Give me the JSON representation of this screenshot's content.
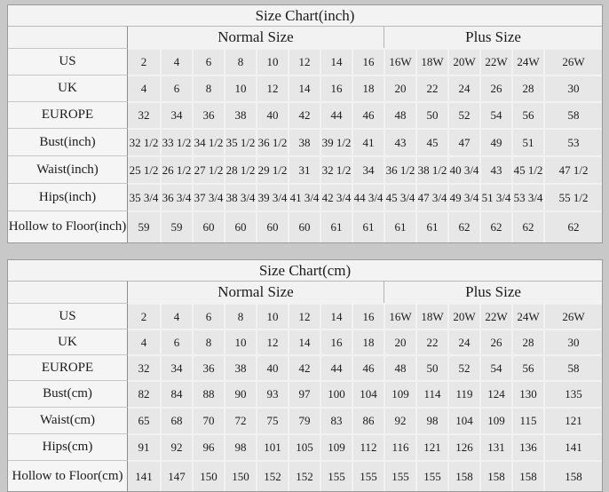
{
  "colors": {
    "page_background": "#c8c8c8",
    "header_background": "#f3f3f3",
    "label_background": "#f5f5f5",
    "cell_background": "#e7e7e7",
    "divider_dark": "#8d8d8d",
    "text": "#1b1b1b"
  },
  "chart_data": [
    {
      "type": "table",
      "title": "Size Chart(inch)",
      "column_groups": [
        {
          "label": "Normal Size",
          "span": 8
        },
        {
          "label": "Plus Size",
          "span": 6
        }
      ],
      "rows": [
        {
          "label": "US",
          "values": [
            "2",
            "4",
            "6",
            "8",
            "10",
            "12",
            "14",
            "16",
            "16W",
            "18W",
            "20W",
            "22W",
            "24W",
            "26W"
          ]
        },
        {
          "label": "UK",
          "values": [
            "4",
            "6",
            "8",
            "10",
            "12",
            "14",
            "16",
            "18",
            "20",
            "22",
            "24",
            "26",
            "28",
            "30"
          ]
        },
        {
          "label": "EUROPE",
          "values": [
            "32",
            "34",
            "36",
            "38",
            "40",
            "42",
            "44",
            "46",
            "48",
            "50",
            "52",
            "54",
            "56",
            "58"
          ]
        },
        {
          "label": "Bust(inch)",
          "values": [
            "32 1/2",
            "33 1/2",
            "34 1/2",
            "35 1/2",
            "36 1/2",
            "38",
            "39 1/2",
            "41",
            "43",
            "45",
            "47",
            "49",
            "51",
            "53"
          ]
        },
        {
          "label": "Waist(inch)",
          "values": [
            "25 1/2",
            "26 1/2",
            "27 1/2",
            "28 1/2",
            "29 1/2",
            "31",
            "32 1/2",
            "34",
            "36 1/2",
            "38 1/2",
            "40 3/4",
            "43",
            "45 1/2",
            "47 1/2"
          ]
        },
        {
          "label": "Hips(inch)",
          "values": [
            "35 3/4",
            "36 3/4",
            "37 3/4",
            "38 3/4",
            "39 3/4",
            "41 3/4",
            "42 3/4",
            "44 3/4",
            "45 3/4",
            "47 3/4",
            "49 3/4",
            "51 3/4",
            "53 3/4",
            "55 1/2"
          ]
        },
        {
          "label": "Hollow to Floor(inch)",
          "values": [
            "59",
            "59",
            "60",
            "60",
            "60",
            "60",
            "61",
            "61",
            "61",
            "61",
            "62",
            "62",
            "62",
            "62"
          ]
        }
      ]
    },
    {
      "type": "table",
      "title": "Size Chart(cm)",
      "column_groups": [
        {
          "label": "Normal Size",
          "span": 8
        },
        {
          "label": "Plus Size",
          "span": 6
        }
      ],
      "rows": [
        {
          "label": "US",
          "values": [
            "2",
            "4",
            "6",
            "8",
            "10",
            "12",
            "14",
            "16",
            "16W",
            "18W",
            "20W",
            "22W",
            "24W",
            "26W"
          ]
        },
        {
          "label": "UK",
          "values": [
            "4",
            "6",
            "8",
            "10",
            "12",
            "14",
            "16",
            "18",
            "20",
            "22",
            "24",
            "26",
            "28",
            "30"
          ]
        },
        {
          "label": "EUROPE",
          "values": [
            "32",
            "34",
            "36",
            "38",
            "40",
            "42",
            "44",
            "46",
            "48",
            "50",
            "52",
            "54",
            "56",
            "58"
          ]
        },
        {
          "label": "Bust(cm)",
          "values": [
            "82",
            "84",
            "88",
            "90",
            "93",
            "97",
            "100",
            "104",
            "109",
            "114",
            "119",
            "124",
            "130",
            "135"
          ]
        },
        {
          "label": "Waist(cm)",
          "values": [
            "65",
            "68",
            "70",
            "72",
            "75",
            "79",
            "83",
            "86",
            "92",
            "98",
            "104",
            "109",
            "115",
            "121"
          ]
        },
        {
          "label": "Hips(cm)",
          "values": [
            "91",
            "92",
            "96",
            "98",
            "101",
            "105",
            "109",
            "112",
            "116",
            "121",
            "126",
            "131",
            "136",
            "141"
          ]
        },
        {
          "label": "Hollow to Floor(cm)",
          "values": [
            "141",
            "147",
            "150",
            "150",
            "152",
            "152",
            "155",
            "155",
            "155",
            "155",
            "158",
            "158",
            "158",
            "158"
          ]
        }
      ]
    }
  ]
}
